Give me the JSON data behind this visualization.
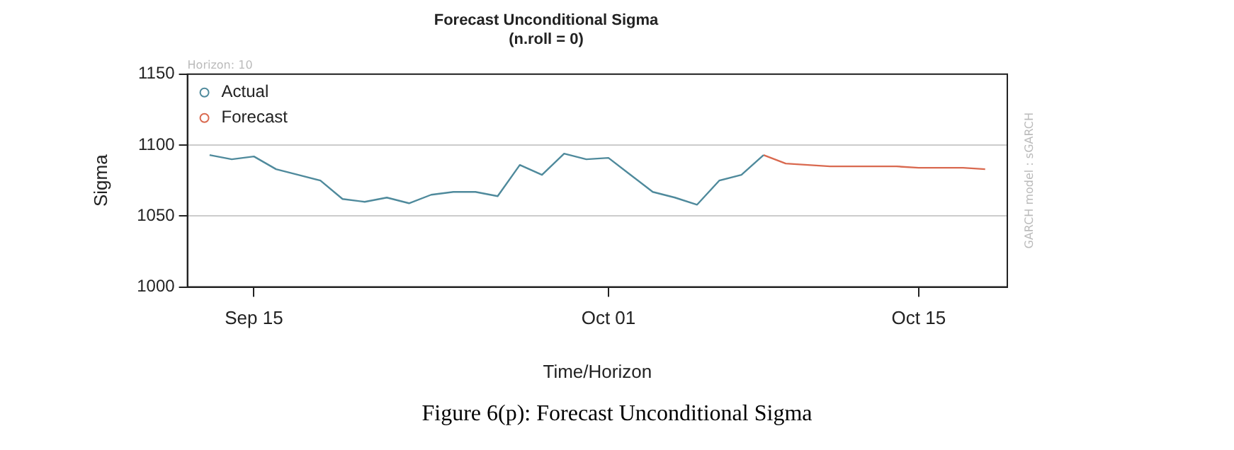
{
  "chart_data": {
    "type": "line",
    "title": "Forecast Unconditional Sigma",
    "subtitle": "(n.roll = 0)",
    "xlabel": "Time/Horizon",
    "ylabel": "Sigma",
    "annotations": [
      "Horizon: 10",
      "GARCH model : sGARCH",
      "Figure 6(p): Forecast Unconditional Sigma"
    ],
    "series": [
      {
        "name": "Actual",
        "color": "#4f8a9c",
        "x": [
          "--09-13",
          "--09-14",
          "--09-15",
          "--09-16",
          "--09-17",
          "--09-18",
          "--09-19",
          "--09-20",
          "--09-21",
          "--09-22",
          "--09-23",
          "--09-24",
          "--09-25",
          "--09-26",
          "--09-27",
          "--09-28",
          "--09-29",
          "--09-30",
          "--10-01",
          "--10-02",
          "--10-03",
          "--10-04",
          "--10-05",
          "--10-06",
          "--10-07",
          "--10-08"
        ],
        "values": [
          1093,
          1090,
          1092,
          1083,
          1079,
          1075,
          1062,
          1060,
          1063,
          1059,
          1065,
          1067,
          1067,
          1064,
          1086,
          1079,
          1094,
          1090,
          1091,
          1079,
          1067,
          1063,
          1058,
          1075,
          1079,
          1093
        ]
      },
      {
        "name": "Forecast",
        "color": "#d9694f",
        "x": [
          "--10-08",
          "--10-09",
          "--10-10",
          "--10-11",
          "--10-12",
          "--10-13",
          "--10-14",
          "--10-15",
          "--10-16",
          "--10-17",
          "--10-18"
        ],
        "values": [
          1093,
          1087,
          1086,
          1085,
          1085,
          1085,
          1085,
          1084,
          1084,
          1084,
          1083
        ]
      }
    ],
    "xlim": [
      "--09-12",
      "--10-19"
    ],
    "xticks": [
      {
        "value": "--09-15",
        "label": "Sep 15"
      },
      {
        "value": "--10-01",
        "label": "Oct 01"
      },
      {
        "value": "--10-15",
        "label": "Oct 15"
      }
    ],
    "ylim": [
      1000,
      1150
    ],
    "yticks": [
      1000,
      1050,
      1100,
      1150
    ],
    "grid": "y",
    "legend": "top left",
    "marker": "none",
    "line_style": "solid"
  }
}
